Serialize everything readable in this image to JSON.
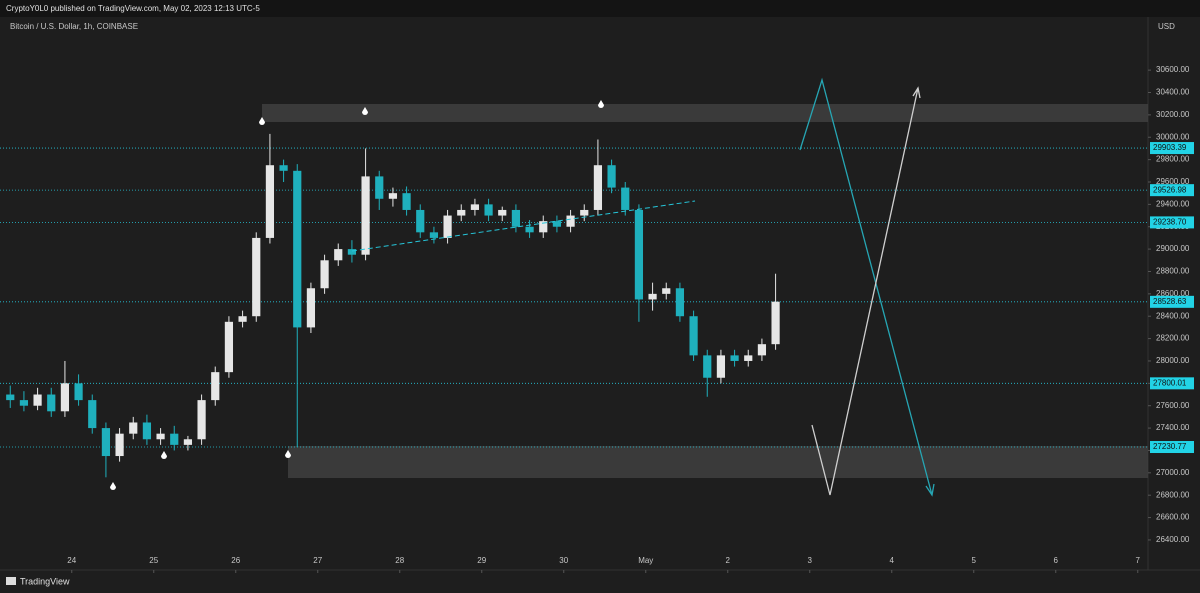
{
  "header": "CryptoY0L0 published on TradingView.com, May 02, 2023 12:13 UTC-5",
  "footer": "TradingView",
  "chart_data": {
    "type": "candlestick",
    "title": "Bitcoin / U.S. Dollar, 1h, COINBASE",
    "y_axis_label": "USD",
    "colors": {
      "up": "#e6e6e6",
      "down": "#1fb0bd"
    },
    "x": [
      -18,
      -14,
      -10,
      -6,
      -2,
      2,
      6,
      10,
      14,
      18,
      22,
      26,
      30,
      34,
      38,
      42,
      46,
      50,
      54,
      58,
      62,
      66,
      70,
      74,
      78,
      82,
      86,
      90,
      94,
      98,
      102,
      106,
      110,
      114,
      118,
      122,
      126,
      130,
      134,
      138,
      142,
      146,
      150,
      154,
      158,
      162,
      166,
      170,
      174,
      178,
      182,
      186,
      190,
      194,
      198,
      202,
      206
    ],
    "open": [
      27700,
      27650,
      27600,
      27700,
      27550,
      27800,
      27650,
      27400,
      27150,
      27350,
      27450,
      27300,
      27350,
      27250,
      27300,
      27650,
      27900,
      28350,
      28400,
      29100,
      29750,
      29700,
      28300,
      28650,
      28900,
      29000,
      28950,
      29650,
      29450,
      29500,
      29350,
      29150,
      29100,
      29300,
      29350,
      29400,
      29300,
      29350,
      29200,
      29150,
      29250,
      29200,
      29300,
      29350,
      29750,
      29550,
      29350,
      28550,
      28600,
      28650,
      28400,
      28050,
      27850,
      28050,
      28000,
      28050,
      28150
    ],
    "high": [
      27780,
      27730,
      27760,
      27760,
      28000,
      27880,
      27700,
      27450,
      27400,
      27500,
      27520,
      27400,
      27420,
      27330,
      27700,
      27950,
      28400,
      28450,
      29150,
      30030,
      29800,
      29760,
      28700,
      28950,
      29050,
      29080,
      29900,
      29700,
      29550,
      29560,
      29400,
      29200,
      29350,
      29400,
      29450,
      29450,
      29380,
      29400,
      29260,
      29300,
      29300,
      29350,
      29400,
      29980,
      29800,
      29600,
      29400,
      28700,
      28700,
      28700,
      28450,
      28100,
      28100,
      28100,
      28100,
      28200,
      28780
    ],
    "low": [
      27580,
      27550,
      27560,
      27500,
      27500,
      27600,
      27350,
      26960,
      27100,
      27300,
      27250,
      27250,
      27200,
      27200,
      27250,
      27600,
      27850,
      28300,
      28350,
      29050,
      29600,
      27230,
      28250,
      28600,
      28850,
      28880,
      28900,
      29350,
      29380,
      29300,
      29100,
      29050,
      29050,
      29250,
      29300,
      29250,
      29250,
      29150,
      29100,
      29100,
      29150,
      29150,
      29250,
      29300,
      29500,
      29300,
      28350,
      28450,
      28550,
      28350,
      28000,
      27680,
      27800,
      27950,
      27950,
      28000,
      28100
    ],
    "close": [
      27650,
      27600,
      27700,
      27550,
      27800,
      27650,
      27400,
      27150,
      27350,
      27450,
      27300,
      27350,
      27250,
      27300,
      27650,
      27900,
      28350,
      28400,
      29100,
      29750,
      29700,
      28300,
      28650,
      28900,
      29000,
      28950,
      29650,
      29450,
      29500,
      29350,
      29150,
      29100,
      29300,
      29350,
      29400,
      29300,
      29350,
      29200,
      29150,
      29250,
      29200,
      29300,
      29350,
      29750,
      29550,
      29350,
      28550,
      28600,
      28650,
      28400,
      28050,
      27850,
      28050,
      28000,
      28050,
      28150,
      28530
    ],
    "xlim": [
      -21,
      315
    ],
    "xticks": [
      {
        "value": 0,
        "label": "24"
      },
      {
        "value": 24,
        "label": "25"
      },
      {
        "value": 48,
        "label": "26"
      },
      {
        "value": 72,
        "label": "27"
      },
      {
        "value": 96,
        "label": "28"
      },
      {
        "value": 120,
        "label": "29"
      },
      {
        "value": 144,
        "label": "30"
      },
      {
        "value": 168,
        "label": "May"
      },
      {
        "value": 192,
        "label": "2"
      },
      {
        "value": 216,
        "label": "3"
      },
      {
        "value": 240,
        "label": "4"
      },
      {
        "value": 264,
        "label": "5"
      },
      {
        "value": 288,
        "label": "6"
      },
      {
        "value": 312,
        "label": "7"
      }
    ],
    "ylim": [
      26167,
      31075
    ],
    "yticks": [
      {
        "value": 26400,
        "label": "26400.00"
      },
      {
        "value": 26600,
        "label": "26600.00"
      },
      {
        "value": 26800,
        "label": "26800.00"
      },
      {
        "value": 27000,
        "label": "27000.00"
      },
      {
        "value": 27200,
        "label": "27200.00"
      },
      {
        "value": 27400,
        "label": "27400.00"
      },
      {
        "value": 27600,
        "label": "27600.00"
      },
      {
        "value": 27800,
        "label": "27800.00"
      },
      {
        "value": 28000,
        "label": "28000.00"
      },
      {
        "value": 28200,
        "label": "28200.00"
      },
      {
        "value": 28400,
        "label": "28400.00"
      },
      {
        "value": 28600,
        "label": "28600.00"
      },
      {
        "value": 28800,
        "label": "28800.00"
      },
      {
        "value": 29000,
        "label": "29000.00"
      },
      {
        "value": 29200,
        "label": "29200.00"
      },
      {
        "value": 29400,
        "label": "29400.00"
      },
      {
        "value": 29600,
        "label": "29600.00"
      },
      {
        "value": 29800,
        "label": "29800.00"
      },
      {
        "value": 30000,
        "label": "30000.00"
      },
      {
        "value": 30200,
        "label": "30200.00"
      },
      {
        "value": 30400,
        "label": "30400.00"
      },
      {
        "value": 30600,
        "label": "30600.00"
      }
    ],
    "levels": [
      {
        "value": 29903.39,
        "label": "29903.39"
      },
      {
        "value": 29526.98,
        "label": "29526.98"
      },
      {
        "value": 29238.7,
        "label": "29238.70"
      },
      {
        "value": 28528.63,
        "label": "28528.63"
      },
      {
        "value": 27800.01,
        "label": "27800.01"
      },
      {
        "value": 27230.77,
        "label": "27230.77"
      }
    ],
    "grid": false
  }
}
